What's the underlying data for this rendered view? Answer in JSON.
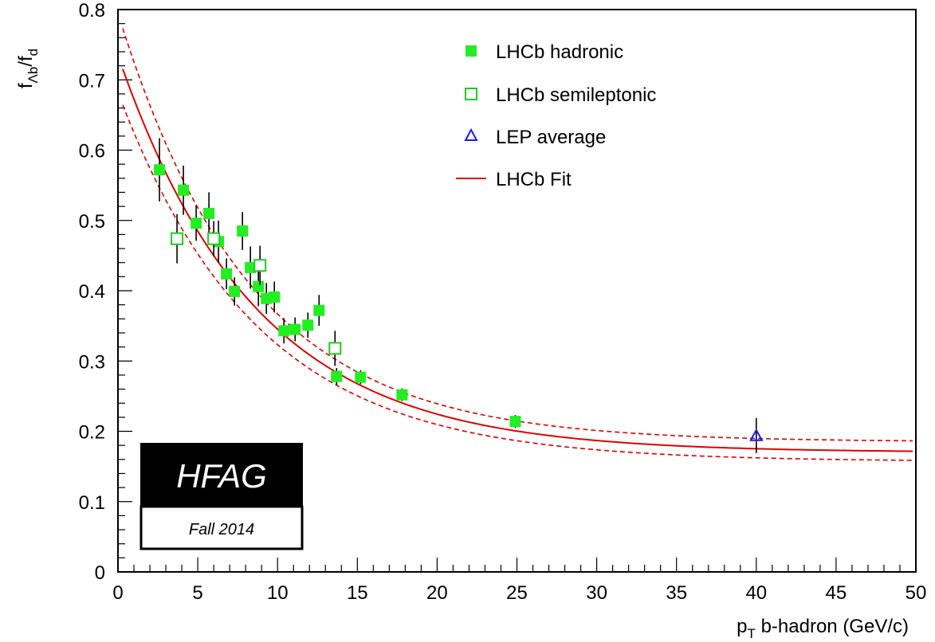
{
  "chart_data": {
    "type": "scatter",
    "xlabel_main": "p",
    "xlabel_sub": "T",
    "xlabel_rest": " b-hadron (GeV/c)",
    "ylabel_f1": "f",
    "ylabel_sub1": "Λb",
    "ylabel_slash": "/f",
    "ylabel_sub2": "d",
    "xlim": [
      0,
      50
    ],
    "ylim": [
      0,
      0.8
    ],
    "x_ticks": [
      "0",
      "5",
      "10",
      "15",
      "20",
      "25",
      "30",
      "35",
      "40",
      "45",
      "50"
    ],
    "y_ticks": [
      "0",
      "0.1",
      "0.2",
      "0.3",
      "0.4",
      "0.5",
      "0.6",
      "0.7",
      "0.8"
    ],
    "legend_position": "top-right",
    "series": [
      {
        "name": "LHCb hadronic",
        "marker": "filled-square",
        "color": "#22ee22",
        "points": [
          {
            "x": 2.6,
            "y": 0.572,
            "err": 0.045
          },
          {
            "x": 4.1,
            "y": 0.543,
            "err": 0.035
          },
          {
            "x": 4.9,
            "y": 0.496,
            "err": 0.025
          },
          {
            "x": 5.7,
            "y": 0.51,
            "err": 0.03
          },
          {
            "x": 6.3,
            "y": 0.47,
            "err": 0.03
          },
          {
            "x": 6.8,
            "y": 0.424,
            "err": 0.022
          },
          {
            "x": 7.3,
            "y": 0.399,
            "err": 0.02
          },
          {
            "x": 7.8,
            "y": 0.485,
            "err": 0.027
          },
          {
            "x": 8.3,
            "y": 0.433,
            "err": 0.03
          },
          {
            "x": 8.8,
            "y": 0.406,
            "err": 0.028
          },
          {
            "x": 9.3,
            "y": 0.389,
            "err": 0.022
          },
          {
            "x": 9.8,
            "y": 0.391,
            "err": 0.022
          },
          {
            "x": 10.4,
            "y": 0.343,
            "err": 0.018
          },
          {
            "x": 11.1,
            "y": 0.345,
            "err": 0.017
          },
          {
            "x": 11.9,
            "y": 0.351,
            "err": 0.018
          },
          {
            "x": 12.6,
            "y": 0.372,
            "err": 0.022
          },
          {
            "x": 13.7,
            "y": 0.278,
            "err": 0.012
          },
          {
            "x": 15.2,
            "y": 0.277,
            "err": 0.01
          },
          {
            "x": 17.8,
            "y": 0.252,
            "err": 0.009
          },
          {
            "x": 24.9,
            "y": 0.214,
            "err": 0.009
          }
        ]
      },
      {
        "name": "LHCb semileptonic",
        "marker": "open-square",
        "color": "#22cc22",
        "points": [
          {
            "x": 3.7,
            "y": 0.474,
            "err": 0.035
          },
          {
            "x": 6.0,
            "y": 0.474,
            "err": 0.025
          },
          {
            "x": 8.9,
            "y": 0.436,
            "err": 0.028
          },
          {
            "x": 13.6,
            "y": 0.318,
            "err": 0.025
          }
        ]
      },
      {
        "name": "LEP average",
        "marker": "open-triangle",
        "color": "#1a1aee",
        "points": [
          {
            "x": 40.0,
            "y": 0.194,
            "err": 0.025
          }
        ]
      }
    ],
    "fit": {
      "name": "LHCb Fit",
      "color": "#e00000",
      "x_start": 0.3,
      "x_end": 50,
      "central": {
        "a": 0.17,
        "b": 0.565,
        "c": 0.117
      },
      "upper": {
        "a": 0.185,
        "b": 0.61,
        "c": 0.121
      },
      "lower": {
        "a": 0.157,
        "b": 0.525,
        "c": 0.115
      }
    }
  },
  "badge": {
    "title": "HFAG",
    "subtitle": "Fall 2014"
  }
}
